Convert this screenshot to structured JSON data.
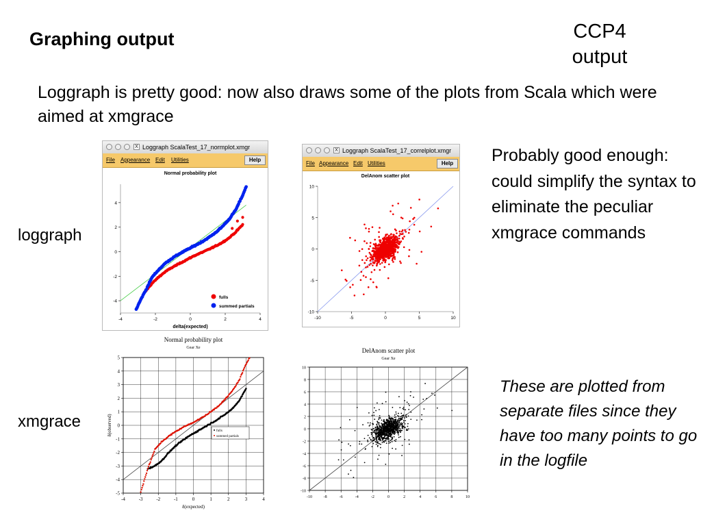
{
  "slide": {
    "title": "Graphing output",
    "corner_label_line1": "CCP4",
    "corner_label_line2": "output",
    "intro": "Loggraph is pretty good: now also draws some of the plots from Scala which were aimed at xmgrace",
    "note_loggraph": "Probably good enough: could simplify the syntax to eliminate the peculiar xmgrace commands",
    "note_xmgrace": "These are plotted from separate files since they have too many points to go in the logfile",
    "row_label_top": "loggraph",
    "row_label_bottom": "xmgrace"
  },
  "windows": {
    "normplot": {
      "title": "Loggraph ScalaTest_17_normplot.xmgr",
      "menus": [
        "File",
        "Appearance",
        "Edit",
        "Utilities"
      ],
      "help": "Help"
    },
    "correlplot": {
      "title": "Loggraph ScalaTest_17_correlplot.xmgr",
      "menus": [
        "File",
        "Appearance",
        "Edit",
        "Utilities"
      ],
      "help": "Help"
    }
  },
  "colors": {
    "fulls_loggraph": "#ee0000",
    "partials_loggraph": "#0022ee",
    "reference_line": "#44cc44",
    "menubar": "#f6c96a",
    "scatter_loggraph": "#ee0000",
    "scatter_xmgrace": "#000000",
    "xm_partials": "#dd1100"
  },
  "chart_data": [
    {
      "id": "loggraph-normal",
      "type": "line",
      "title": "Normal probability plot",
      "xlabel": "delta(expected)",
      "ylabel": "",
      "xlim": [
        -4,
        4
      ],
      "ylim": [
        -5,
        5.5
      ],
      "xticks": [
        "-4",
        "-2",
        "0",
        "2",
        "4"
      ],
      "yticks": [
        "4",
        "2",
        "0",
        "-2",
        "-4"
      ],
      "series": [
        {
          "name": "fulls",
          "x": [
            -2.6,
            -2.2,
            -1.8,
            -1.4,
            -1.0,
            -0.6,
            -0.2,
            0.2,
            0.6,
            1.0,
            1.4,
            1.8,
            2.2,
            2.6,
            3.0
          ],
          "y": [
            -3.3,
            -2.6,
            -2.05,
            -1.6,
            -1.25,
            -0.95,
            -0.65,
            -0.35,
            -0.1,
            0.15,
            0.42,
            0.72,
            1.1,
            1.6,
            2.2
          ]
        },
        {
          "name": "summed partials",
          "x": [
            -3.1,
            -2.8,
            -2.5,
            -2.2,
            -1.8,
            -1.4,
            -1.0,
            -0.6,
            -0.2,
            0.2,
            0.6,
            1.0,
            1.4,
            1.8,
            2.2,
            2.6,
            3.0,
            3.2
          ],
          "y": [
            -4.7,
            -3.8,
            -3.0,
            -2.1,
            -1.45,
            -0.9,
            -0.5,
            -0.15,
            0.15,
            0.45,
            0.75,
            1.1,
            1.5,
            2.0,
            2.6,
            3.4,
            4.6,
            5.3
          ]
        }
      ],
      "reference_line": {
        "x": [
          -4,
          3.2
        ],
        "y": [
          -4.0,
          3.8
        ]
      }
    },
    {
      "id": "loggraph-scatter",
      "type": "scatter",
      "title": "DelAnom scatter plot",
      "xlabel": "",
      "ylabel": "",
      "xlim": [
        -10,
        10
      ],
      "ylim": [
        -10,
        10
      ],
      "xticks": [
        "-10",
        "-5",
        "0",
        "5",
        "10"
      ],
      "yticks": [
        "10",
        "5",
        "0",
        "-5",
        "-10"
      ],
      "reference_line": {
        "x": [
          -10,
          10
        ],
        "y": [
          -10,
          10
        ]
      }
    },
    {
      "id": "xmgrace-normal",
      "type": "line",
      "title": "Normal probability plot",
      "subtitle": "Gear Xe",
      "xlabel": "δ(expected)",
      "ylabel": "δ(observed)",
      "xlim": [
        -4,
        4
      ],
      "ylim": [
        -5,
        5
      ],
      "xticks": [
        "-4",
        "-3",
        "-2",
        "-1",
        "0",
        "1",
        "2",
        "3",
        "4"
      ],
      "yticks": [
        "5",
        "4",
        "3",
        "2",
        "1",
        "0",
        "-1",
        "-2",
        "-3",
        "-4",
        "-5"
      ],
      "legend": [
        "fulls",
        "summed partials"
      ],
      "series": [
        {
          "name": "fulls",
          "x": [
            -2.6,
            -2.2,
            -1.8,
            -1.4,
            -1.0,
            -0.6,
            -0.2,
            0.2,
            0.6,
            1.0,
            1.4,
            1.8,
            2.2,
            2.6,
            3.0
          ],
          "y": [
            -3.2,
            -3.0,
            -2.6,
            -2.0,
            -1.5,
            -1.1,
            -0.75,
            -0.45,
            -0.15,
            0.15,
            0.45,
            0.8,
            1.2,
            1.8,
            2.7
          ]
        },
        {
          "name": "summed partials",
          "x": [
            -3.0,
            -2.6,
            -2.2,
            -1.8,
            -1.4,
            -1.0,
            -0.6,
            -0.2,
            0.2,
            0.6,
            1.0,
            1.4,
            1.8,
            2.2,
            2.6,
            3.0,
            3.2
          ],
          "y": [
            -4.9,
            -3.2,
            -1.8,
            -1.2,
            -0.8,
            -0.45,
            -0.15,
            0.1,
            0.35,
            0.65,
            1.0,
            1.4,
            1.9,
            2.5,
            3.3,
            4.5,
            5.0
          ]
        }
      ],
      "reference_line": {
        "x": [
          -4,
          4
        ],
        "y": [
          -4,
          4
        ]
      }
    },
    {
      "id": "xmgrace-scatter",
      "type": "scatter",
      "title": "DelAnom scatter plot",
      "subtitle": "Gear Xe",
      "xlabel": "",
      "ylabel": "",
      "xlim": [
        -10,
        10
      ],
      "ylim": [
        -10,
        10
      ],
      "xticks": [
        "-10",
        "-8",
        "-6",
        "-4",
        "-2",
        "0",
        "2",
        "4",
        "6",
        "8",
        "10"
      ],
      "yticks": [
        "10",
        "8",
        "6",
        "4",
        "2",
        "0",
        "-2",
        "-4",
        "-6",
        "-8",
        "-10"
      ],
      "reference_line": {
        "x": [
          -10,
          10
        ],
        "y": [
          -10,
          10
        ]
      }
    }
  ]
}
